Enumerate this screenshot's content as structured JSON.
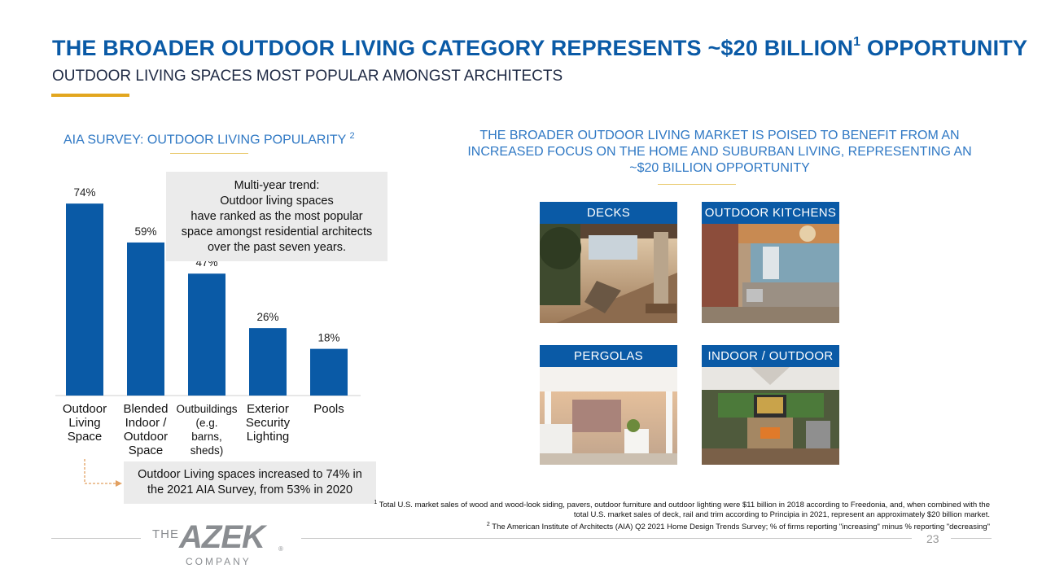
{
  "header": {
    "title_main": "THE BROADER OUTDOOR LIVING CATEGORY REPRESENTS ~$20 BILLION",
    "title_sup": "1",
    "title_end": " OPPORTUNITY",
    "subtitle": "OUTDOOR LIVING SPACES MOST POPULAR AMONGST ARCHITECTS"
  },
  "left": {
    "heading": "AIA SURVEY: OUTDOOR LIVING POPULARITY",
    "heading_sup": "2",
    "trend_box": {
      "line1": "Multi-year trend:",
      "line2": "Outdoor living spaces",
      "line3": "have ranked as the most popular",
      "line4": "space amongst residential architects",
      "line5": "over the past seven years."
    },
    "callout": {
      "line1": "Outdoor Living spaces increased to 74% in",
      "line2": "the 2021 AIA Survey, from 53% in 2020"
    }
  },
  "chart_data": {
    "type": "bar",
    "title": "AIA Survey: Outdoor Living Popularity",
    "categories": [
      "Outdoor Living Space",
      "Blended Indoor / Outdoor Space",
      "Outbuildings (e.g. barns, sheds)",
      "Exterior Security Lighting",
      "Pools"
    ],
    "category_lines": [
      [
        "Outdoor",
        "Living",
        "Space"
      ],
      [
        "Blended",
        "Indoor /",
        "Outdoor",
        "Space"
      ],
      [
        "Outbuildings",
        "(e.g.",
        "barns,",
        "sheds)"
      ],
      [
        "Exterior",
        "Security",
        "Lighting"
      ],
      [
        "Pools"
      ]
    ],
    "values": [
      74,
      59,
      47,
      26,
      18
    ],
    "value_labels": [
      "74%",
      "59%",
      "47%",
      "26%",
      "18%"
    ],
    "ylim": [
      0,
      80
    ],
    "xlabel": "",
    "ylabel": ""
  },
  "right": {
    "heading_line1": "THE BROADER OUTDOOR LIVING MARKET IS POISED TO BENEFIT FROM AN",
    "heading_line2": "INCREASED  FOCUS ON THE HOME AND SUBURBAN LIVING, REPRESENTING AN",
    "heading_line3": "~$20 BILLION OPPORTUNITY",
    "tiles": [
      {
        "label": "DECKS"
      },
      {
        "label": "OUTDOOR KITCHENS"
      },
      {
        "label": "PERGOLAS"
      },
      {
        "label": "INDOOR / OUTDOOR"
      }
    ]
  },
  "footnotes": {
    "n1_mark": "1",
    "n1_text": " Total U.S. market sales of wood and wood-look siding, pavers, outdoor furniture and outdoor lighting were $11 billion in 2018 according to Freedonia, and, when combined with the total U.S. market sales of deck, rail and trim according to Principia in 2021, represent an approximately $20 billion market.",
    "n2_mark": "2",
    "n2_text": " The American Institute of Architects (AIA) Q2 2021 Home Design Trends Survey; % of firms reporting \"increasing\" minus % reporting \"decreasing\""
  },
  "footer": {
    "logo_the": "THE",
    "logo_azek": "AZEK",
    "logo_company": "COMPANY",
    "logo_reg": "®",
    "page_number": "23"
  },
  "colors": {
    "brand_blue": "#0a5aa6",
    "gold": "#e2a61f",
    "logo_gray": "#8a8d91"
  }
}
